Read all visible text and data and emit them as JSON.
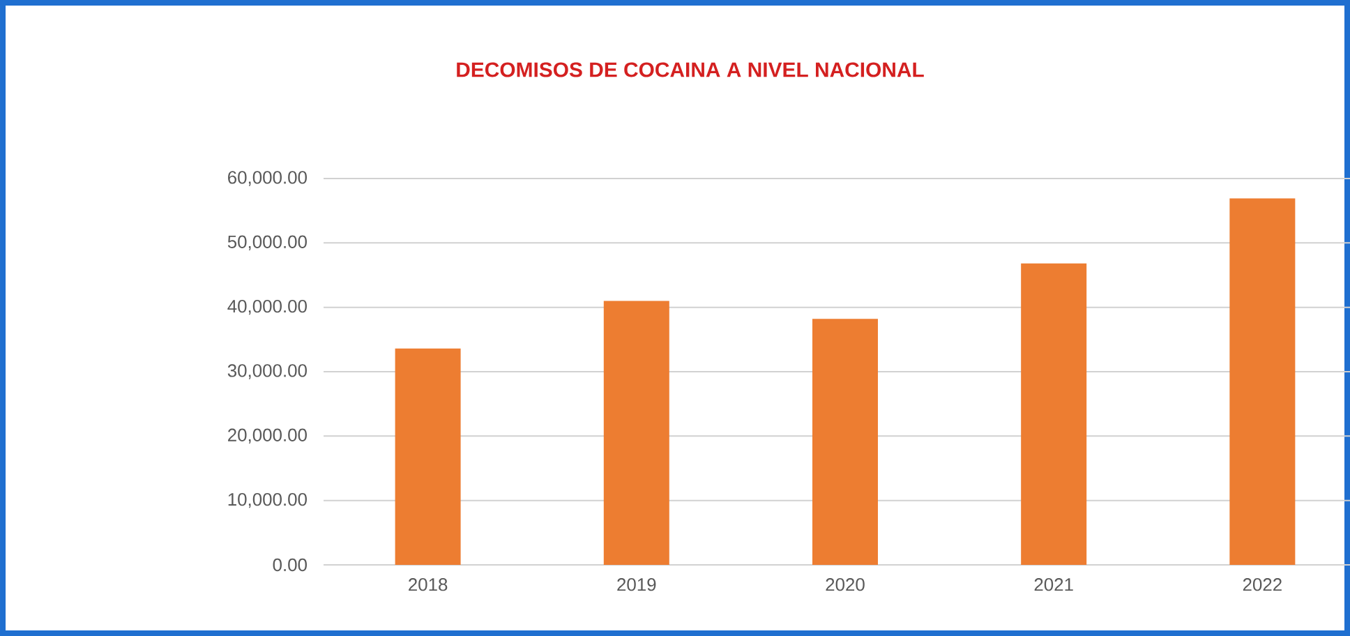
{
  "chart_data": {
    "type": "bar",
    "title": "DECOMISOS DE COCAINA A NIVEL NACIONAL",
    "categories": [
      "2018",
      "2019",
      "2020",
      "2021",
      "2022"
    ],
    "values": [
      33600,
      41000,
      38200,
      46800,
      56900
    ],
    "color": "#ed7d31",
    "ylim": [
      0,
      60000
    ],
    "yticks": [
      {
        "value": 0,
        "label": "0.00"
      },
      {
        "value": 10000,
        "label": "10,000.00"
      },
      {
        "value": 20000,
        "label": "20,000.00"
      },
      {
        "value": 30000,
        "label": "30,000.00"
      },
      {
        "value": 40000,
        "label": "40,000.00"
      },
      {
        "value": 50000,
        "label": "50,000.00"
      },
      {
        "value": 60000,
        "label": "60,000.00"
      }
    ],
    "grid": "y"
  }
}
